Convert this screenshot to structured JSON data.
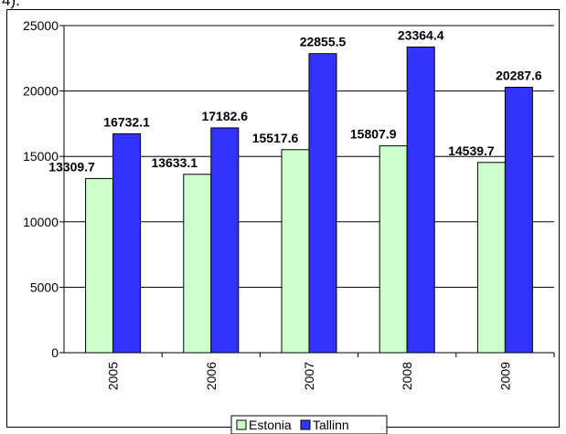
{
  "top_fragment": "4).",
  "chart_data": {
    "type": "bar",
    "categories": [
      "2005",
      "2006",
      "2007",
      "2008",
      "2009"
    ],
    "series": [
      {
        "name": "Estonia",
        "values": [
          13309.7,
          13633.1,
          15517.6,
          15807.9,
          14539.7
        ],
        "color": "#ccffcc",
        "labels": [
          "13309.7",
          "13633.1",
          "15517.6",
          "15807.9",
          "14539.7"
        ]
      },
      {
        "name": "Tallinn",
        "values": [
          16732.1,
          17182.6,
          22855.5,
          23364.4,
          20287.6
        ],
        "color": "#3333ff",
        "labels": [
          "16732.1",
          "17182.6",
          "22855.5",
          "23364.4",
          "20287.6"
        ]
      }
    ],
    "ylim": [
      0,
      25000
    ],
    "yticks": [
      0,
      5000,
      10000,
      15000,
      20000,
      25000
    ],
    "ytick_labels": [
      "0",
      "5000",
      "10000",
      "15000",
      "20000",
      "25000"
    ],
    "grid": true,
    "legend_position": "bottom"
  }
}
